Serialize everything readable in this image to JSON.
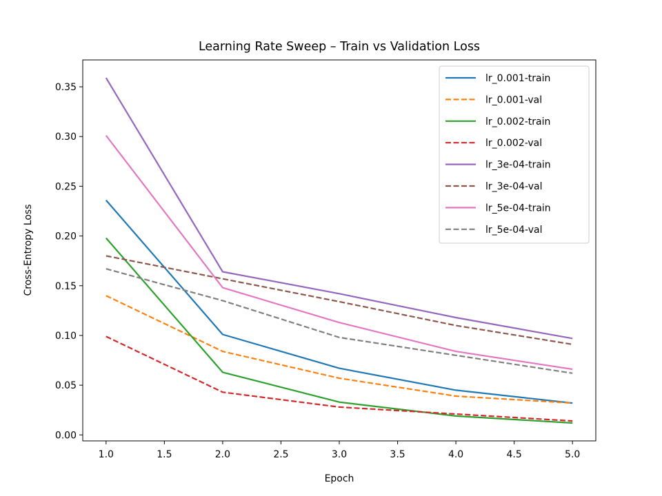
{
  "chart_data": {
    "type": "line",
    "title": "Learning Rate Sweep – Train vs Validation Loss",
    "xlabel": "Epoch",
    "ylabel": "Cross-Entropy Loss",
    "xlim": [
      0.8,
      5.2
    ],
    "ylim": [
      -0.006,
      0.377
    ],
    "xticks": [
      1.0,
      1.5,
      2.0,
      2.5,
      3.0,
      3.5,
      4.0,
      4.5,
      5.0
    ],
    "xtick_labels": [
      "1.0",
      "1.5",
      "2.0",
      "2.5",
      "3.0",
      "3.5",
      "4.0",
      "4.5",
      "5.0"
    ],
    "yticks": [
      0.0,
      0.05,
      0.1,
      0.15,
      0.2,
      0.25,
      0.3,
      0.35
    ],
    "ytick_labels": [
      "0.00",
      "0.05",
      "0.10",
      "0.15",
      "0.20",
      "0.25",
      "0.30",
      "0.35"
    ],
    "grid": false,
    "legend_position": "top-right",
    "x": [
      1,
      2,
      3,
      4,
      5
    ],
    "series": [
      {
        "name": "lr_0.001-train",
        "color": "#1f77b4",
        "style": "solid",
        "values": [
          0.236,
          0.101,
          0.067,
          0.045,
          0.032
        ]
      },
      {
        "name": "lr_0.001-val",
        "color": "#ff7f0e",
        "style": "dashed",
        "values": [
          0.14,
          0.084,
          0.057,
          0.039,
          0.032
        ]
      },
      {
        "name": "lr_0.002-train",
        "color": "#2ca02c",
        "style": "solid",
        "values": [
          0.198,
          0.063,
          0.033,
          0.019,
          0.012
        ]
      },
      {
        "name": "lr_0.002-val",
        "color": "#d62728",
        "style": "dashed",
        "values": [
          0.099,
          0.043,
          0.028,
          0.021,
          0.014
        ]
      },
      {
        "name": "lr_3e-04-train",
        "color": "#9467bd",
        "style": "solid",
        "values": [
          0.359,
          0.164,
          0.142,
          0.118,
          0.097
        ]
      },
      {
        "name": "lr_3e-04-val",
        "color": "#8c564b",
        "style": "dashed",
        "values": [
          0.18,
          0.157,
          0.134,
          0.11,
          0.091
        ]
      },
      {
        "name": "lr_5e-04-train",
        "color": "#e377c2",
        "style": "solid",
        "values": [
          0.301,
          0.148,
          0.113,
          0.084,
          0.066
        ]
      },
      {
        "name": "lr_5e-04-val",
        "color": "#7f7f7f",
        "style": "dashed",
        "values": [
          0.167,
          0.135,
          0.098,
          0.08,
          0.062
        ]
      }
    ]
  }
}
